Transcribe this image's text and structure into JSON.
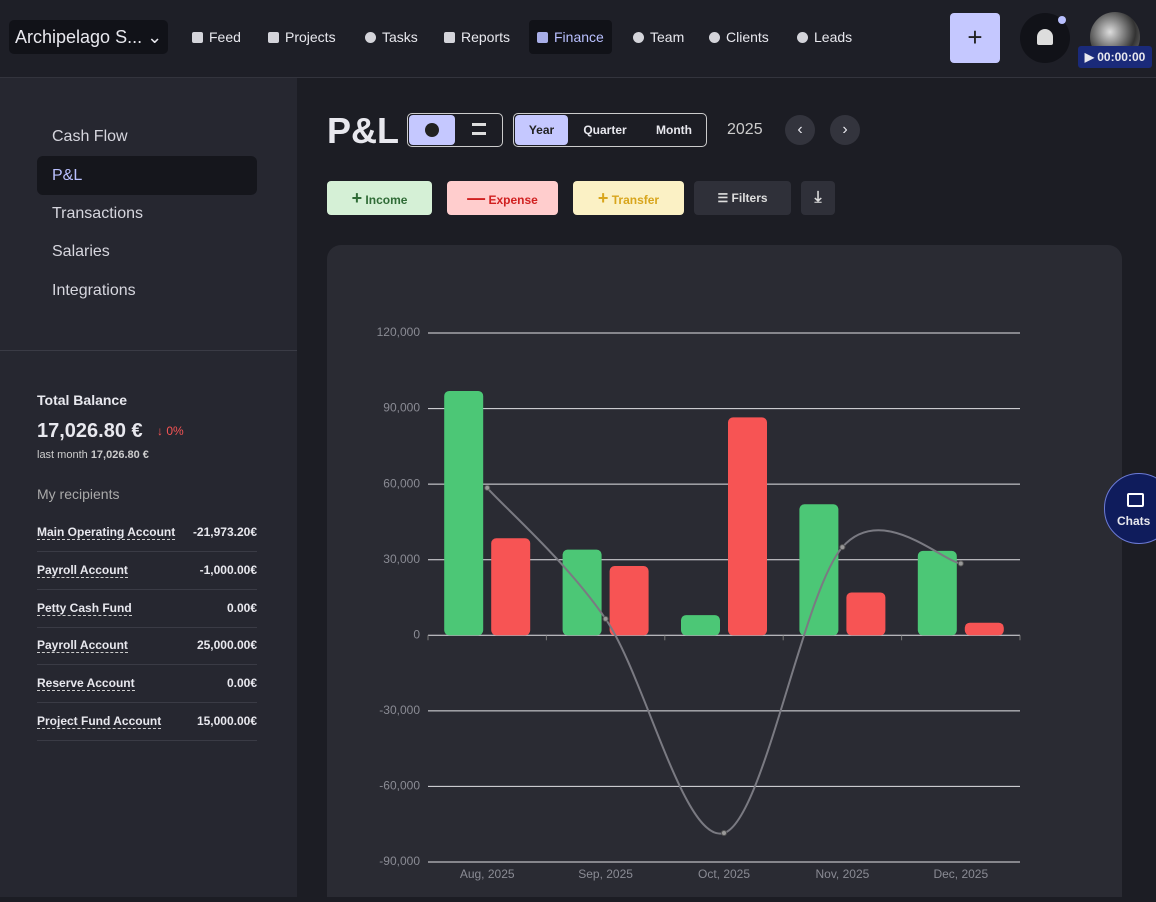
{
  "header": {
    "brand": "Archipelago S...",
    "nav": [
      "Feed",
      "Projects",
      "Tasks",
      "Reports",
      "Finance",
      "Team",
      "Clients",
      "Leads"
    ],
    "timer": "00:00:00"
  },
  "sidebar": {
    "menu": [
      "Cash Flow",
      "P&L",
      "Transactions",
      "Salaries",
      "Integrations"
    ],
    "balance": {
      "title": "Total Balance",
      "amount": "17,026.80 €",
      "change": "0%",
      "last_month_label": "last month",
      "last_month": "17,026.80 €"
    },
    "recipients_title": "My recipients",
    "recipients": [
      {
        "name": "Main Operating Account",
        "amount": "-21,973.20€"
      },
      {
        "name": "Payroll Account",
        "amount": "-1,000.00€"
      },
      {
        "name": "Petty Cash Fund",
        "amount": "0.00€"
      },
      {
        "name": "Payroll Account",
        "amount": "25,000.00€"
      },
      {
        "name": "Reserve Account",
        "amount": "0.00€"
      },
      {
        "name": "Project Fund Account",
        "amount": "15,000.00€"
      }
    ]
  },
  "page": {
    "title": "P&L",
    "periods": [
      "Year",
      "Quarter",
      "Month"
    ],
    "year": "2025",
    "actions": [
      "Income",
      "Expense",
      "Transfer",
      "Filters"
    ]
  },
  "chats": "Chats",
  "chart_data": {
    "type": "bar",
    "categories": [
      "Aug, 2025",
      "Sep, 2025",
      "Oct, 2025",
      "Nov, 2025",
      "Dec, 2025"
    ],
    "series": [
      {
        "kind": "bar",
        "color": "#4cc776",
        "values": [
          97000,
          34000,
          8000,
          52000,
          33500
        ]
      },
      {
        "kind": "bar",
        "color": "#f75454",
        "values": [
          38500,
          27500,
          86500,
          17000,
          5000
        ]
      },
      {
        "kind": "line",
        "color": "#7a7a82",
        "values": [
          58500,
          6500,
          -78500,
          35000,
          28500
        ]
      }
    ],
    "ylim": [
      -90000,
      120000
    ],
    "yticks": [
      {
        "value": -90000,
        "label": "-90,000"
      },
      {
        "value": -60000,
        "label": "-60,000"
      },
      {
        "value": -30000,
        "label": "-30,000"
      },
      0,
      {
        "value": 30000,
        "label": "30,000"
      },
      {
        "value": 60000,
        "label": "60,000"
      },
      {
        "value": 90000,
        "label": "90,000"
      },
      {
        "value": 120000,
        "label": "120,000"
      }
    ],
    "grid": true
  }
}
